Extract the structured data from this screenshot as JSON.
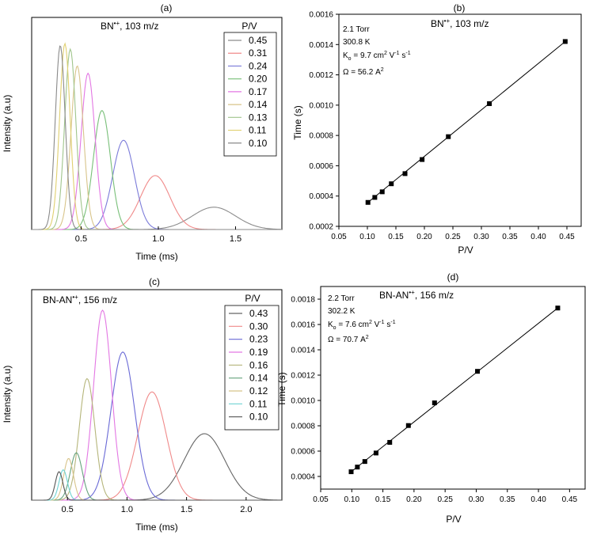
{
  "chart_data": [
    {
      "panel": "(a)",
      "type": "line",
      "title": "BN•+, 103 m/z",
      "title_base": "BN",
      "title_sup": "•+",
      "title_rest": ", 103 m/z",
      "xlabel": "Time (ms)",
      "ylabel": "Intensity (a.u)",
      "xlim": [
        0.18,
        1.8
      ],
      "xticks": [
        0.5,
        1.0,
        1.5
      ],
      "xtick_labels": [
        "0.5",
        "1.0",
        "1.5"
      ],
      "legend_title": "P/V",
      "legend_position": "top-right",
      "series": [
        {
          "name": "0.45",
          "color": "#8c8c8c",
          "peak_x": 1.36,
          "peak_y": 0.12,
          "width": 0.14
        },
        {
          "name": "0.31",
          "color": "#f08a8a",
          "peak_x": 0.98,
          "peak_y": 0.29,
          "width": 0.095
        },
        {
          "name": "0.24",
          "color": "#7b7bd9",
          "peak_x": 0.775,
          "peak_y": 0.48,
          "width": 0.07
        },
        {
          "name": "0.20",
          "color": "#78bf78",
          "peak_x": 0.635,
          "peak_y": 0.64,
          "width": 0.055
        },
        {
          "name": "0.17",
          "color": "#e377e3",
          "peak_x": 0.545,
          "peak_y": 0.84,
          "width": 0.045
        },
        {
          "name": "0.14",
          "color": "#d8c48a",
          "peak_x": 0.475,
          "peak_y": 0.88,
          "width": 0.04
        },
        {
          "name": "0.13",
          "color": "#a0c58c",
          "peak_x": 0.43,
          "peak_y": 0.97,
          "width": 0.036
        },
        {
          "name": "0.11",
          "color": "#e0d070",
          "peak_x": 0.395,
          "peak_y": 1.0,
          "width": 0.034
        },
        {
          "name": "0.10",
          "color": "#8a8a8a",
          "peak_x": 0.365,
          "peak_y": 0.99,
          "width": 0.032
        }
      ]
    },
    {
      "panel": "(b)",
      "type": "scatter",
      "title": "BN•+, 103 m/z",
      "title_base": "BN",
      "title_sup": "•+",
      "title_rest": ", 103 m/z",
      "xlabel": "P/V",
      "ylabel": "Time (s)",
      "xlim": [
        0.05,
        0.475
      ],
      "ylim": [
        0.0002,
        0.0016
      ],
      "xtick_labels": [
        "0.05",
        "0.10",
        "0.15",
        "0.20",
        "0.25",
        "0.30",
        "0.35",
        "0.40",
        "0.45"
      ],
      "ytick_labels": [
        "0.0002",
        "0.0004",
        "0.0006",
        "0.0008",
        "0.0010",
        "0.0012",
        "0.0014",
        "0.0016"
      ],
      "x": [
        0.101,
        0.113,
        0.126,
        0.142,
        0.166,
        0.196,
        0.242,
        0.314,
        0.447
      ],
      "y": [
        0.000358,
        0.000391,
        0.000428,
        0.000481,
        0.000548,
        0.000641,
        0.000792,
        0.00101,
        0.00142
      ],
      "fit": {
        "x": [
          0.101,
          0.447
        ],
        "y": [
          0.000358,
          0.00142
        ]
      },
      "annotations": {
        "pressure": "2.1 Torr",
        "temperature": "300.8 K",
        "k_main": "K",
        "k_sub": "o",
        "k_value": " = 9.7 cm",
        "k_sup1": "2",
        "k_units_a": " V",
        "k_sup2": "-1",
        "k_units_b": " s",
        "k_sup3": "-1",
        "omega": "Ω = 56.2 A",
        "omega_sup": "2"
      }
    },
    {
      "panel": "(c)",
      "type": "line",
      "title": "BN-AN•+, 156 m/z",
      "title_base": "BN-AN",
      "title_sup": "•+",
      "title_rest": ", 156 m/z",
      "xlabel": "Time (ms)",
      "ylabel": "Intensity (a.u)",
      "xlim": [
        0.2,
        2.3
      ],
      "xticks": [
        0.5,
        1.0,
        1.5,
        2.0
      ],
      "xtick_labels": [
        "0.5",
        "1.0",
        "1.5",
        "2.0"
      ],
      "legend_title": "P/V",
      "legend_position": "top-right",
      "series": [
        {
          "name": "0.43",
          "color": "#666666",
          "peak_x": 1.65,
          "peak_y": 0.35,
          "width": 0.17
        },
        {
          "name": "0.30",
          "color": "#f08a8a",
          "peak_x": 1.21,
          "peak_y": 0.57,
          "width": 0.12
        },
        {
          "name": "0.23",
          "color": "#6a6ad6",
          "peak_x": 0.965,
          "peak_y": 0.78,
          "width": 0.1
        },
        {
          "name": "0.19",
          "color": "#e377e3",
          "peak_x": 0.795,
          "peak_y": 1.0,
          "width": 0.075
        },
        {
          "name": "0.16",
          "color": "#b5b57a",
          "peak_x": 0.665,
          "peak_y": 0.64,
          "width": 0.065
        },
        {
          "name": "0.14",
          "color": "#66a27d",
          "peak_x": 0.575,
          "peak_y": 0.25,
          "width": 0.05
        },
        {
          "name": "0.12",
          "color": "#d8c48a",
          "peak_x": 0.51,
          "peak_y": 0.22,
          "width": 0.04
        },
        {
          "name": "0.11",
          "color": "#6fd3d3",
          "peak_x": 0.465,
          "peak_y": 0.16,
          "width": 0.035
        },
        {
          "name": "0.10",
          "color": "#555555",
          "peak_x": 0.43,
          "peak_y": 0.15,
          "width": 0.032
        }
      ]
    },
    {
      "panel": "(d)",
      "type": "scatter",
      "title": "BN-AN•+, 156 m/z",
      "title_base": "BN-AN",
      "title_sup": "•+",
      "title_rest": ", 156 m/z",
      "xlabel": "P/V",
      "ylabel": "Time (s)",
      "xlim": [
        0.05,
        0.475
      ],
      "ylim": [
        0.0003,
        0.0019
      ],
      "xtick_labels": [
        "0.05",
        "0.10",
        "0.15",
        "0.20",
        "0.25",
        "0.30",
        "0.35",
        "0.40",
        "0.45"
      ],
      "ytick_labels": [
        "0.0004",
        "0.0006",
        "0.0008",
        "0.0010",
        "0.0012",
        "0.0014",
        "0.0016",
        "0.0018"
      ],
      "x": [
        0.099,
        0.109,
        0.121,
        0.139,
        0.161,
        0.191,
        0.233,
        0.302,
        0.431
      ],
      "y": [
        0.000437,
        0.000474,
        0.000518,
        0.000585,
        0.000669,
        0.000802,
        0.000981,
        0.00123,
        0.00173
      ],
      "fit": {
        "x": [
          0.099,
          0.431
        ],
        "y": [
          0.000437,
          0.00173
        ]
      },
      "annotations": {
        "pressure": "2.2 Torr",
        "temperature": "302.2 K",
        "k_main": "K",
        "k_sub": "o",
        "k_value": " = 7.6 cm",
        "k_sup1": "2",
        "k_units_a": " V",
        "k_sup2": "-1",
        "k_units_b": " s",
        "k_sup3": "-1",
        "omega": "Ω = 70.7 A",
        "omega_sup": "2"
      }
    }
  ]
}
